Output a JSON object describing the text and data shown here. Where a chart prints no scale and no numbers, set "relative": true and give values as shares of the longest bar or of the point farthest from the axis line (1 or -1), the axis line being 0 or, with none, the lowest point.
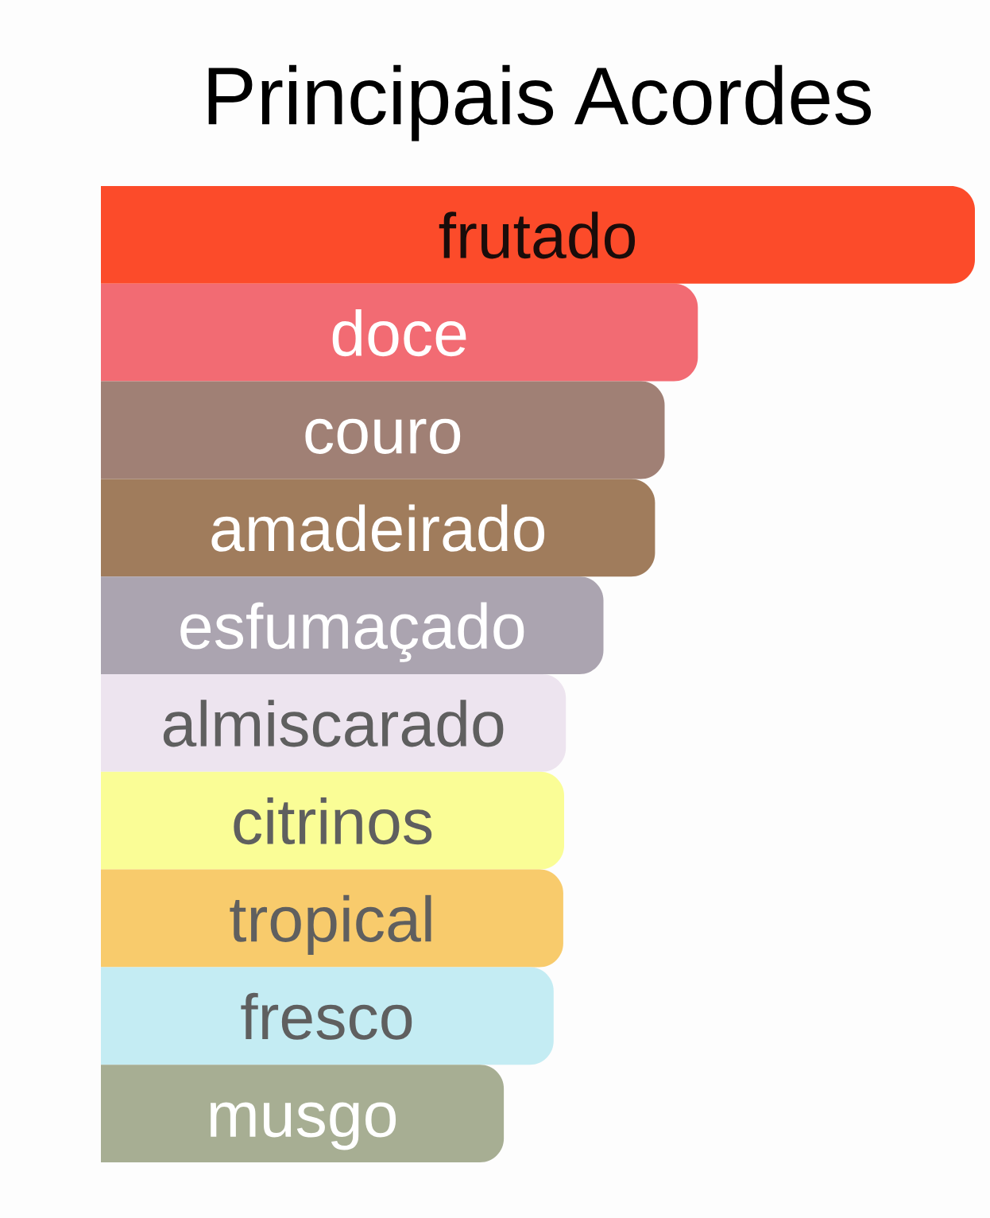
{
  "chart_data": {
    "type": "bar",
    "orientation": "horizontal",
    "relative": true,
    "title": "Principais Acordes",
    "categories": [
      "frutado",
      "doce",
      "couro",
      "amadeirado",
      "esfumaçado",
      "almiscarado",
      "citrinos",
      "tropical",
      "fresco",
      "musgo"
    ],
    "values": [
      1,
      0.683,
      0.645,
      0.634,
      0.575,
      0.532,
      0.53,
      0.529,
      0.518,
      0.461
    ],
    "colors": [
      "#fc4b2a",
      "#f26b73",
      "#a08075",
      "#a07c5c",
      "#aba4b0",
      "#ede4ef",
      "#fafd96",
      "#f8cb6c",
      "#c4ecf3",
      "#a7ae93"
    ]
  }
}
